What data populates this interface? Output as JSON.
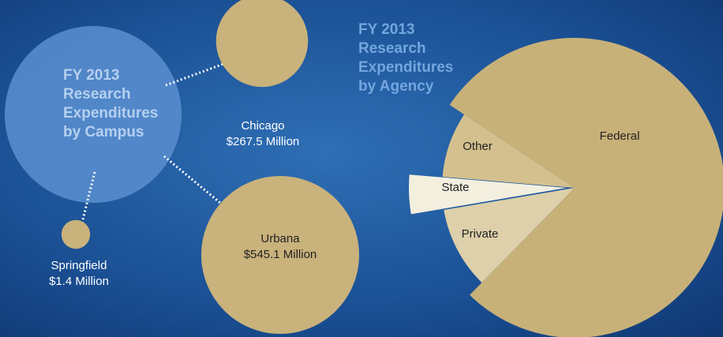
{
  "chart_data": [
    {
      "type": "bubble",
      "title": "FY 2013 Research Expenditures by Campus",
      "categories": [
        "Chicago",
        "Urbana",
        "Springfield"
      ],
      "values": [
        267.5,
        545.1,
        1.4
      ],
      "value_labels": [
        "$267.5 Million",
        "$545.1 Million",
        "$1.4 Million"
      ],
      "color": "#c9b27b"
    },
    {
      "type": "pie",
      "title": "FY 2013 Research Expenditures by Agency",
      "categories": [
        "Other",
        "State",
        "Private",
        "Federal"
      ],
      "values": [
        8,
        4,
        10,
        78
      ],
      "colors": [
        "#d3c08e",
        "#f3efdf",
        "#ddd0aa",
        "#c8b179"
      ]
    }
  ]
}
